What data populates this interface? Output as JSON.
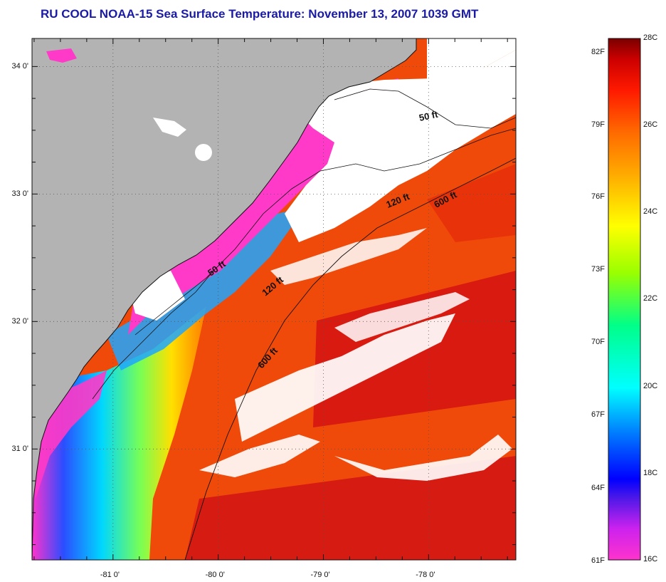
{
  "title": "RU COOL  NOAA-15  Sea Surface Temperature:  November 13, 2007 1039 GMT",
  "map": {
    "lat_labels": [
      {
        "text": "34 0'",
        "lat": 34.0
      },
      {
        "text": "33 0'",
        "lat": 33.0
      },
      {
        "text": "32 0'",
        "lat": 32.0
      },
      {
        "text": "31 0'",
        "lat": 31.0
      }
    ],
    "lon_labels": [
      {
        "text": "-81 0'",
        "lon": -81.0
      },
      {
        "text": "-80 0'",
        "lon": -80.0
      },
      {
        "text": "-79 0'",
        "lon": -79.0
      },
      {
        "text": "-78 0'",
        "lon": -78.0
      }
    ],
    "lat_range": [
      30.13,
      34.22
    ],
    "lon_range": [
      -81.77,
      -77.17
    ],
    "land_color": "#b3b3b3",
    "cloud_color": "#ffffff",
    "isobath_labels": [
      {
        "text": "50 ft"
      },
      {
        "text": "120 ft"
      },
      {
        "text": "600 ft"
      },
      {
        "text": "50 ft"
      },
      {
        "text": "120 ft"
      },
      {
        "text": "600 ft"
      }
    ]
  },
  "colorbar": {
    "fahrenheit_labels": [
      "82F",
      "79F",
      "76F",
      "73F",
      "70F",
      "67F",
      "64F",
      "61F"
    ],
    "celsius_labels": [
      "28C",
      "26C",
      "24C",
      "22C",
      "20C",
      "18C",
      "16C"
    ],
    "range_c": [
      16,
      28
    ],
    "colors": [
      "#ff33cc",
      "#bb22ee",
      "#3311ee",
      "#0066ff",
      "#00ccff",
      "#00ffaa",
      "#88ff22",
      "#ffff00",
      "#ffaa00",
      "#ff6600",
      "#ff2200",
      "#cc0000",
      "#770000"
    ]
  }
}
